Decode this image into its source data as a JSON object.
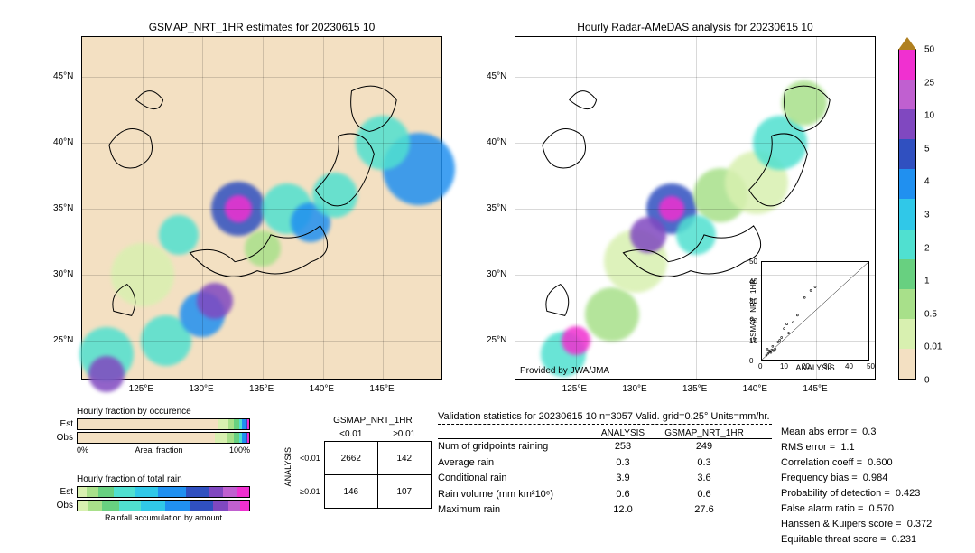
{
  "maps": {
    "left": {
      "title": "GSMAP_NRT_1HR estimates for 20230615 10"
    },
    "right": {
      "title": "Hourly Radar-AMeDAS analysis for 20230615 10",
      "provided": "Provided by JWA/JMA"
    },
    "lon_ticks": [
      "125°E",
      "130°E",
      "135°E",
      "140°E",
      "145°E"
    ],
    "lat_ticks": [
      "25°N",
      "30°N",
      "35°N",
      "40°N",
      "45°N"
    ],
    "lon_range": [
      120,
      150
    ],
    "lat_range": [
      22,
      48
    ]
  },
  "colorbar": {
    "levels": [
      "0",
      "0.01",
      "0.5",
      "1",
      "2",
      "3",
      "4",
      "5",
      "10",
      "25",
      "50"
    ],
    "colors": [
      "#f3e0c2",
      "#d8f0b0",
      "#a8e08a",
      "#68d080",
      "#50e0d0",
      "#30c8e8",
      "#2090f0",
      "#3050c0",
      "#8048c0",
      "#c060d0",
      "#f030d0",
      "#b08020"
    ]
  },
  "scatter": {
    "xlabel": "ANALYSIS",
    "ylabel": "GSMAP_NRT_1HR",
    "lim": [
      0,
      50
    ],
    "ticks": [
      0,
      10,
      20,
      30,
      40,
      50
    ]
  },
  "occurrence": {
    "title": "Hourly fraction by occurence",
    "axis_title": "Areal fraction",
    "axis_ticks": [
      "0%",
      "100%"
    ],
    "rows": [
      {
        "label": "Est",
        "segs": [
          {
            "c": "#f3e0c2",
            "w": 82
          },
          {
            "c": "#d8f0b0",
            "w": 6
          },
          {
            "c": "#a8e08a",
            "w": 3
          },
          {
            "c": "#68d080",
            "w": 3
          },
          {
            "c": "#50e0d0",
            "w": 2
          },
          {
            "c": "#2090f0",
            "w": 2
          },
          {
            "c": "#3050c0",
            "w": 1
          },
          {
            "c": "#f030d0",
            "w": 1
          }
        ]
      },
      {
        "label": "Obs",
        "segs": [
          {
            "c": "#f3e0c2",
            "w": 80
          },
          {
            "c": "#d8f0b0",
            "w": 7
          },
          {
            "c": "#a8e08a",
            "w": 4
          },
          {
            "c": "#68d080",
            "w": 3
          },
          {
            "c": "#50e0d0",
            "w": 2
          },
          {
            "c": "#2090f0",
            "w": 2
          },
          {
            "c": "#3050c0",
            "w": 1
          },
          {
            "c": "#f030d0",
            "w": 1
          }
        ]
      }
    ]
  },
  "totalrain": {
    "title": "Hourly fraction of total rain",
    "footer": "Rainfall accumulation by amount",
    "rows": [
      {
        "label": "Est",
        "segs": [
          {
            "c": "#d8f0b0",
            "w": 5
          },
          {
            "c": "#a8e08a",
            "w": 7
          },
          {
            "c": "#68d080",
            "w": 9
          },
          {
            "c": "#50e0d0",
            "w": 12
          },
          {
            "c": "#30c8e8",
            "w": 14
          },
          {
            "c": "#2090f0",
            "w": 16
          },
          {
            "c": "#3050c0",
            "w": 14
          },
          {
            "c": "#8048c0",
            "w": 8
          },
          {
            "c": "#c060d0",
            "w": 8
          },
          {
            "c": "#f030d0",
            "w": 7
          }
        ]
      },
      {
        "label": "Obs",
        "segs": [
          {
            "c": "#d8f0b0",
            "w": 6
          },
          {
            "c": "#a8e08a",
            "w": 8
          },
          {
            "c": "#68d080",
            "w": 10
          },
          {
            "c": "#50e0d0",
            "w": 13
          },
          {
            "c": "#30c8e8",
            "w": 14
          },
          {
            "c": "#2090f0",
            "w": 15
          },
          {
            "c": "#3050c0",
            "w": 13
          },
          {
            "c": "#8048c0",
            "w": 9
          },
          {
            "c": "#c060d0",
            "w": 7
          },
          {
            "c": "#f030d0",
            "w": 5
          }
        ]
      }
    ]
  },
  "contingency": {
    "title": "GSMAP_NRT_1HR",
    "col_hdrs": [
      "<0.01",
      "≥0.01"
    ],
    "row_hdrs": [
      "<0.01",
      "≥0.01"
    ],
    "ylabel": "ANALYSIS",
    "cells": [
      [
        "2662",
        "142"
      ],
      [
        "146",
        "107"
      ]
    ]
  },
  "stats": {
    "title": "Validation statistics for 20230615 10  n=3057 Valid. grid=0.25°  Units=mm/hr.",
    "cols": [
      "ANALYSIS",
      "GSMAP_NRT_1HR"
    ],
    "rows": [
      {
        "k": "Num of gridpoints raining",
        "a": "253",
        "g": "249"
      },
      {
        "k": "Average rain",
        "a": "0.3",
        "g": "0.3"
      },
      {
        "k": "Conditional rain",
        "a": "3.9",
        "g": "3.6"
      },
      {
        "k": "Rain volume (mm km²10⁶)",
        "a": "0.6",
        "g": "0.6"
      },
      {
        "k": "Maximum rain",
        "a": "12.0",
        "g": "27.6"
      }
    ],
    "errors": [
      {
        "k": "Mean abs error =",
        "v": "0.3"
      },
      {
        "k": "RMS error =",
        "v": "1.1"
      },
      {
        "k": "Correlation coeff =",
        "v": "0.600"
      },
      {
        "k": "Frequency bias =",
        "v": "0.984"
      },
      {
        "k": "Probability of detection =",
        "v": "0.423"
      },
      {
        "k": "False alarm ratio =",
        "v": "0.570"
      },
      {
        "k": "Hanssen & Kuipers score =",
        "v": "0.372"
      },
      {
        "k": "Equitable threat score =",
        "v": "0.231"
      }
    ]
  },
  "precip_blobs": {
    "left": [
      {
        "lon": 122,
        "lat": 24,
        "r": 30,
        "c": "#50e0d0"
      },
      {
        "lon": 122,
        "lat": 22.5,
        "r": 20,
        "c": "#8048c0"
      },
      {
        "lon": 127,
        "lat": 25,
        "r": 28,
        "c": "#50e0d0"
      },
      {
        "lon": 130,
        "lat": 27,
        "r": 25,
        "c": "#2090f0"
      },
      {
        "lon": 131,
        "lat": 28,
        "r": 20,
        "c": "#8048c0"
      },
      {
        "lon": 133,
        "lat": 35,
        "r": 30,
        "c": "#3050c0"
      },
      {
        "lon": 133,
        "lat": 35,
        "r": 15,
        "c": "#f030d0"
      },
      {
        "lon": 137,
        "lat": 35,
        "r": 28,
        "c": "#50e0d0"
      },
      {
        "lon": 139,
        "lat": 34,
        "r": 22,
        "c": "#2090f0"
      },
      {
        "lon": 141,
        "lat": 36,
        "r": 25,
        "c": "#50e0d0"
      },
      {
        "lon": 148,
        "lat": 38,
        "r": 40,
        "c": "#2090f0"
      },
      {
        "lon": 145,
        "lat": 40,
        "r": 30,
        "c": "#50e0d0"
      },
      {
        "lon": 135,
        "lat": 32,
        "r": 20,
        "c": "#a8e08a"
      },
      {
        "lon": 128,
        "lat": 33,
        "r": 22,
        "c": "#50e0d0"
      },
      {
        "lon": 125,
        "lat": 30,
        "r": 35,
        "c": "#d8f0b0"
      }
    ],
    "right": [
      {
        "lon": 124,
        "lat": 24,
        "r": 25,
        "c": "#50e0d0"
      },
      {
        "lon": 125,
        "lat": 25,
        "r": 16,
        "c": "#f030d0"
      },
      {
        "lon": 128,
        "lat": 27,
        "r": 30,
        "c": "#a8e08a"
      },
      {
        "lon": 130,
        "lat": 31,
        "r": 35,
        "c": "#d8f0b0"
      },
      {
        "lon": 133,
        "lat": 35,
        "r": 28,
        "c": "#3050c0"
      },
      {
        "lon": 133,
        "lat": 35,
        "r": 14,
        "c": "#f030d0"
      },
      {
        "lon": 137,
        "lat": 36,
        "r": 30,
        "c": "#a8e08a"
      },
      {
        "lon": 140,
        "lat": 37,
        "r": 35,
        "c": "#d8f0b0"
      },
      {
        "lon": 142,
        "lat": 40,
        "r": 30,
        "c": "#50e0d0"
      },
      {
        "lon": 144,
        "lat": 43,
        "r": 25,
        "c": "#a8e08a"
      },
      {
        "lon": 135,
        "lat": 33,
        "r": 22,
        "c": "#50e0d0"
      },
      {
        "lon": 131,
        "lat": 33,
        "r": 20,
        "c": "#8048c0"
      }
    ]
  }
}
